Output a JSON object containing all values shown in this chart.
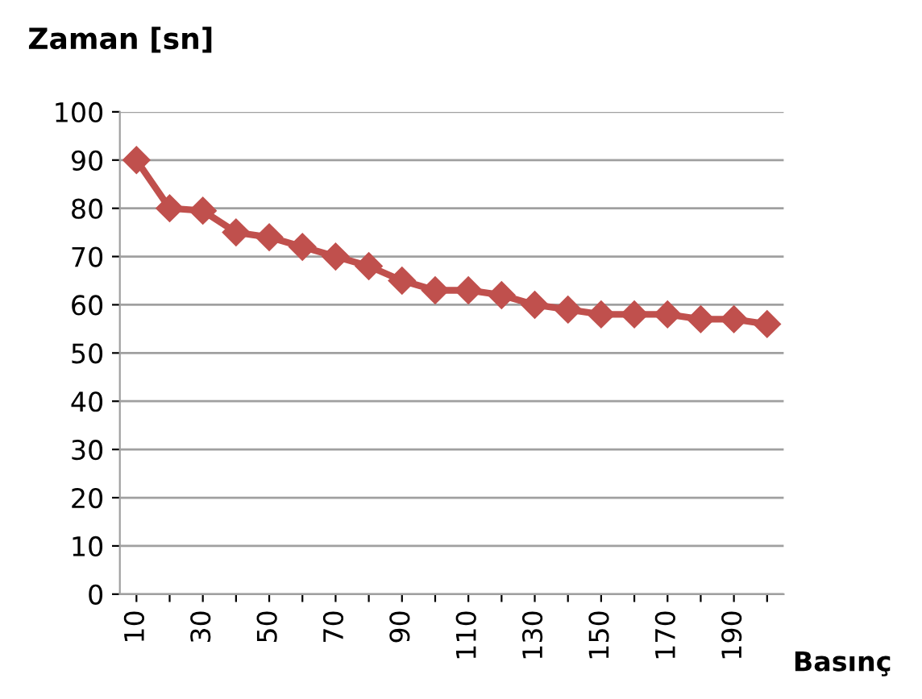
{
  "chart_data": {
    "type": "line",
    "title": "Zaman [sn]",
    "xlabel": "Basınç",
    "categories": [
      "10",
      null,
      "30",
      null,
      "50",
      null,
      "70",
      null,
      "90",
      null,
      "110",
      null,
      "130",
      null,
      "150",
      null,
      "170",
      null,
      "190",
      null
    ],
    "series": [
      {
        "color": "#c0504d",
        "values": [
          90,
          80,
          79.5,
          75,
          74,
          72,
          70,
          68,
          65,
          63,
          63,
          62,
          60,
          59,
          58,
          58,
          58,
          57,
          57,
          56
        ]
      }
    ],
    "ylim": [
      0,
      100
    ],
    "yticks": [
      0,
      10,
      20,
      30,
      40,
      50,
      60,
      70,
      80,
      90,
      100
    ],
    "grid": "y",
    "marker": "diamond",
    "line_style": "solid",
    "legend": false
  }
}
